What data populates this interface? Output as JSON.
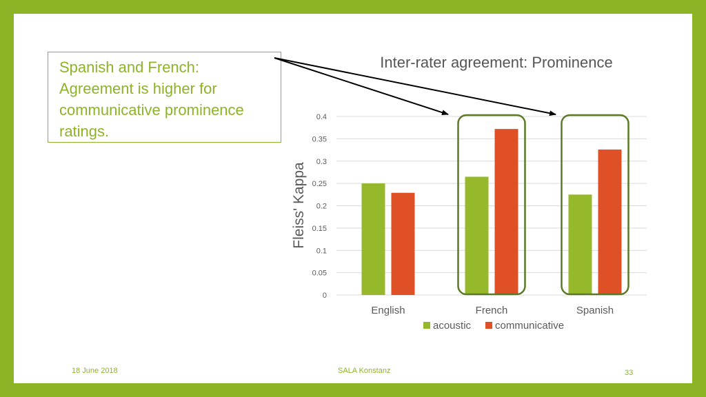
{
  "callout": {
    "lines": [
      "Spanish and French:",
      "Agreement is higher for",
      "communicative prominence",
      "ratings."
    ]
  },
  "chart_data": {
    "type": "bar",
    "title": "Inter-rater agreement: Prominence",
    "xlabel": "",
    "ylabel": "Fleiss' Kappa",
    "ylim": [
      0,
      0.4
    ],
    "yticks": [
      "0",
      "0.05",
      "0.1",
      "0.15",
      "0.2",
      "0.25",
      "0.3",
      "0.35",
      "0.4"
    ],
    "categories": [
      "English",
      "French",
      "Spanish"
    ],
    "series": [
      {
        "name": "acoustic",
        "color": "#95b92b",
        "values": [
          0.25,
          0.265,
          0.225
        ]
      },
      {
        "name": "communicative",
        "color": "#e05027",
        "values": [
          0.229,
          0.372,
          0.326
        ]
      }
    ],
    "grid": true,
    "legend": "bottom",
    "highlighted_categories": [
      "French",
      "Spanish"
    ],
    "highlight_color": "#5a7a23"
  },
  "footer": {
    "date": "18 June 2018",
    "center": "SALA Konstanz",
    "page": "33"
  }
}
